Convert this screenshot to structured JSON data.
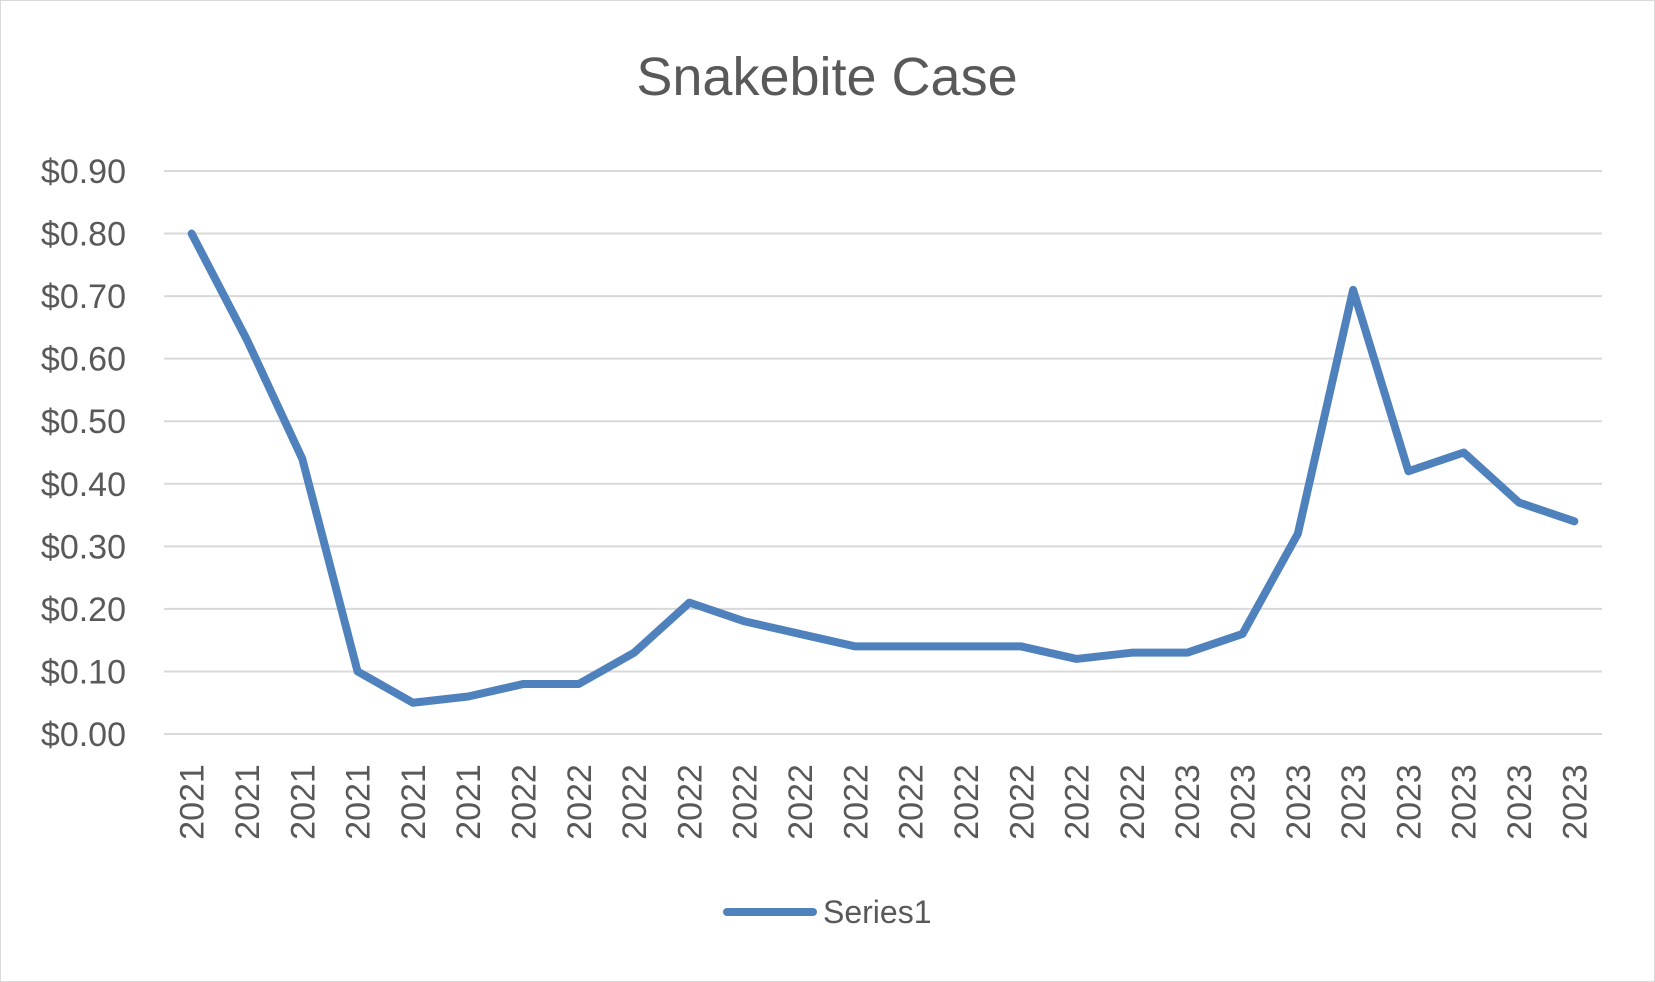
{
  "chart_data": {
    "type": "line",
    "title": "Snakebite Case",
    "xlabel": "",
    "ylabel": "",
    "y_format": "currency_usd_2dp",
    "ylim": [
      0,
      0.9
    ],
    "y_ticks": [
      "$0.00",
      "$0.10",
      "$0.20",
      "$0.30",
      "$0.40",
      "$0.50",
      "$0.60",
      "$0.70",
      "$0.80",
      "$0.90"
    ],
    "grid": true,
    "legend_position": "bottom",
    "categories": [
      "2021",
      "2021",
      "2021",
      "2021",
      "2021",
      "2021",
      "2022",
      "2022",
      "2022",
      "2022",
      "2022",
      "2022",
      "2022",
      "2022",
      "2022",
      "2022",
      "2022",
      "2022",
      "2023",
      "2023",
      "2023",
      "2023",
      "2023",
      "2023",
      "2023",
      "2023"
    ],
    "series": [
      {
        "name": "Series1",
        "color": "#4f81bd",
        "values": [
          0.8,
          0.63,
          0.44,
          0.1,
          0.05,
          0.06,
          0.08,
          0.08,
          0.13,
          0.21,
          0.18,
          0.16,
          0.14,
          0.14,
          0.14,
          0.14,
          0.12,
          0.13,
          0.13,
          0.16,
          0.32,
          0.71,
          0.42,
          0.45,
          0.37,
          0.34
        ]
      }
    ],
    "gridline_color": "#d9d9d9",
    "text_color": "#595959"
  }
}
